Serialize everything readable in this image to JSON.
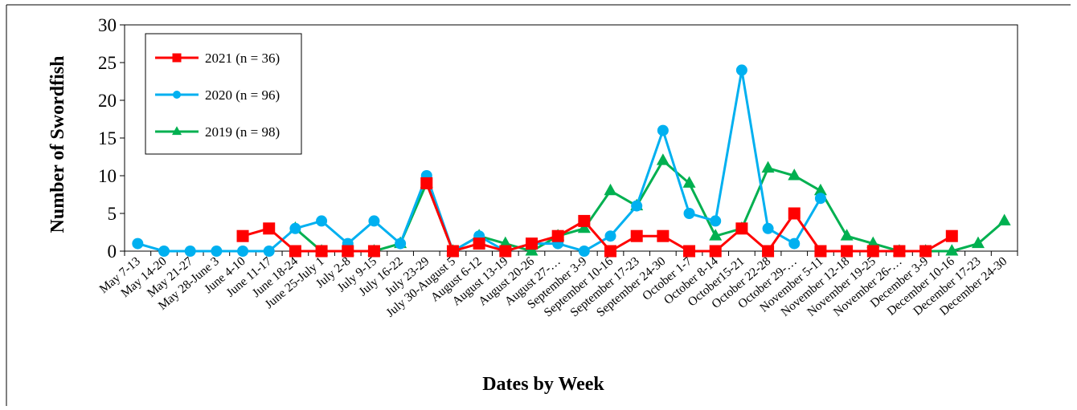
{
  "chart_data": {
    "type": "line",
    "title": "",
    "xlabel": "Dates by Week",
    "ylabel": "Number of Swordfish",
    "ylim": [
      0,
      30
    ],
    "yticks": [
      0,
      5,
      10,
      15,
      20,
      25,
      30
    ],
    "grid": false,
    "legend_position": "top-left",
    "categories": [
      "May 7-13",
      "May 14-20",
      "May 21-27",
      "May 28-June 3",
      "June 4-10",
      "June 11-17",
      "June 18-24",
      "June 25-July 1",
      "July 2-8",
      "July 9-15",
      "July 16-22",
      "July 23-29",
      "July 30-August 5",
      "August 6-12",
      "August 13-19",
      "August 20-26",
      "August 27-…",
      "September 3-9",
      "September 10-16",
      "September 17-23",
      "September 24-30",
      "October 1-7",
      "October 8-14",
      "October15-21",
      "October 22-28",
      "October 29-…",
      "November 5-11",
      "November 12-18",
      "November 19-25",
      "November 26-…",
      "December 3-9",
      "December 10-16",
      "December 17-23",
      "December 24-30"
    ],
    "series": [
      {
        "name": "2021 (n = 36)",
        "color": "#ff0000",
        "marker": "square",
        "values": [
          null,
          null,
          null,
          null,
          2,
          3,
          0,
          0,
          0,
          0,
          null,
          9,
          0,
          1,
          0,
          1,
          2,
          4,
          0,
          2,
          2,
          0,
          0,
          3,
          0,
          5,
          0,
          0,
          0,
          0,
          0,
          2,
          null,
          null
        ]
      },
      {
        "name": "2020 (n = 96)",
        "color": "#00b0f0",
        "marker": "circle",
        "values": [
          1,
          0,
          0,
          0,
          0,
          0,
          3,
          4,
          1,
          4,
          1,
          10,
          0,
          2,
          0,
          1,
          1,
          0,
          2,
          6,
          16,
          5,
          4,
          24,
          3,
          1,
          7,
          null,
          null,
          null,
          null,
          null,
          null,
          null
        ]
      },
      {
        "name": "2019 (n = 98)",
        "color": "#00b050",
        "marker": "triangle",
        "values": [
          null,
          null,
          null,
          null,
          null,
          null,
          3,
          0,
          0,
          0,
          1,
          9,
          0,
          2,
          1,
          0,
          2,
          3,
          8,
          6,
          12,
          9,
          2,
          3,
          11,
          10,
          8,
          2,
          1,
          0,
          0,
          0,
          1,
          4
        ]
      }
    ]
  }
}
